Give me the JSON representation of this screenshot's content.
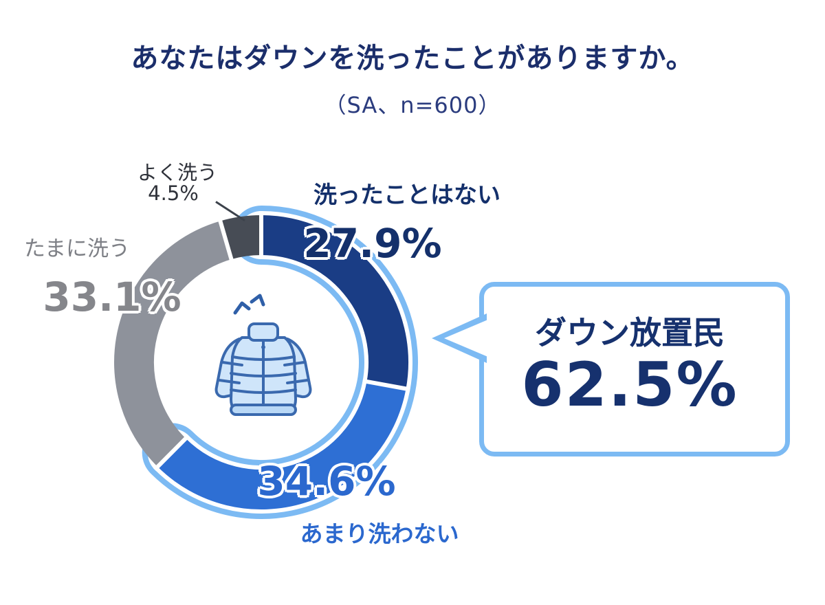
{
  "title": "あなたはダウンを洗ったことがありますか。",
  "subtitle": "（SA、n=600）",
  "chart_data": {
    "type": "pie",
    "subtype": "donut",
    "title": "あなたはダウンを洗ったことがありますか。",
    "note": "（SA、n=600）",
    "n": 600,
    "categories": [
      "洗ったことはない",
      "あまり洗わない",
      "たまに洗う",
      "よく洗う"
    ],
    "values": [
      27.9,
      34.6,
      33.1,
      4.5
    ],
    "unit": "%",
    "colors": [
      "#1a3d85",
      "#2e6fd4",
      "#8e929b",
      "#474c55"
    ],
    "start_angle_deg": 0,
    "direction": "clockwise",
    "legend_position": "around",
    "highlight": {
      "label": "ダウン放置民",
      "value": 62.5,
      "segments": [
        0,
        1
      ],
      "color": "#7cbaf3"
    }
  },
  "labels": {
    "never": {
      "name": "洗ったことはない",
      "pct": "27.9%"
    },
    "rarely": {
      "name": "あまり洗わない",
      "pct": "34.6%"
    },
    "sometimes": {
      "name": "たまに洗う",
      "pct": "33.1%"
    },
    "often": {
      "name": "よく洗う",
      "pct": "4.5%"
    }
  },
  "callout": {
    "title": "ダウン放置民",
    "value": "62.5%"
  }
}
